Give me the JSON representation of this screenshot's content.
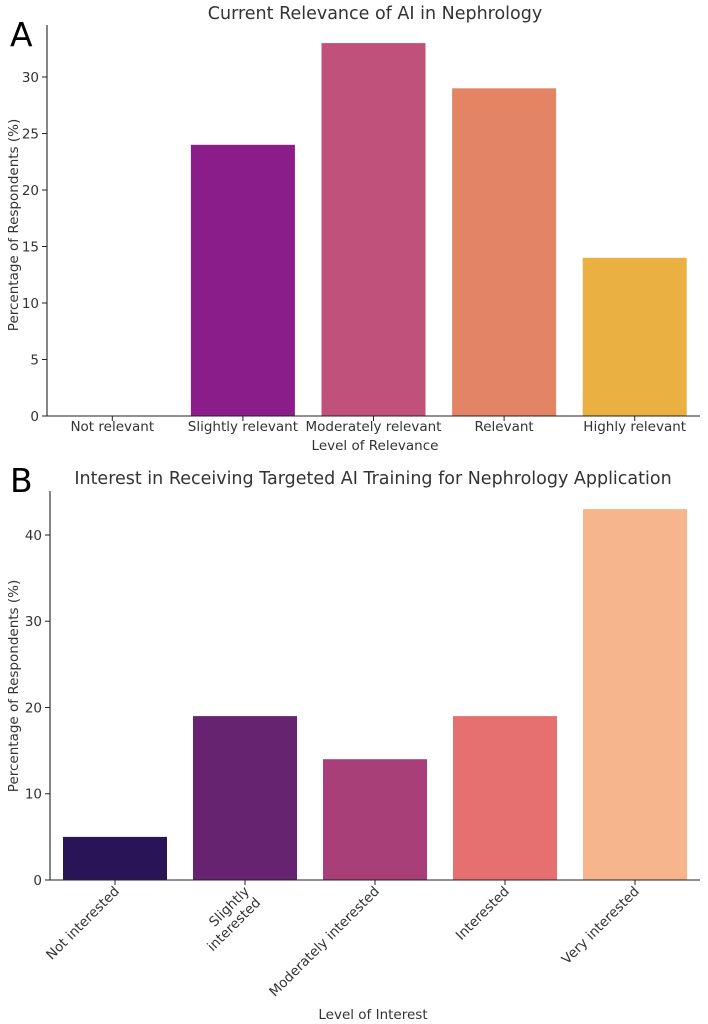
{
  "chart_data": [
    {
      "type": "bar",
      "panel": "A",
      "title": "Current Relevance of AI in Nephrology",
      "xlabel": "Level of Relevance",
      "ylabel": "Percentage of Respondents (%)",
      "categories": [
        "Not relevant",
        "Slightly relevant",
        "Moderately relevant",
        "Relevant",
        "Highly relevant"
      ],
      "values": [
        0,
        24,
        33,
        29,
        14
      ],
      "colors": [
        "#1a0b3b",
        "#8b1d8b",
        "#c0517a",
        "#e38464",
        "#eab042"
      ],
      "yticks": [
        0,
        5,
        10,
        15,
        20,
        25,
        30
      ],
      "ylim": [
        0,
        34.6
      ],
      "grid": false
    },
    {
      "type": "bar",
      "panel": "B",
      "title": "Interest in Receiving Targeted AI Training for Nephrology Application",
      "xlabel": "Level of Interest",
      "ylabel": "Percentage of Respondents (%)",
      "categories": [
        "Not interested",
        "Slightly\ninterested",
        "Moderately interested",
        "Interested",
        "Very interested"
      ],
      "values": [
        5,
        19,
        14,
        19,
        43
      ],
      "colors": [
        "#2a1458",
        "#66236f",
        "#a83f78",
        "#e66f6f",
        "#f6b58a"
      ],
      "yticks": [
        0,
        10,
        20,
        30,
        40
      ],
      "ylim": [
        0,
        45.1
      ],
      "grid": false
    }
  ]
}
